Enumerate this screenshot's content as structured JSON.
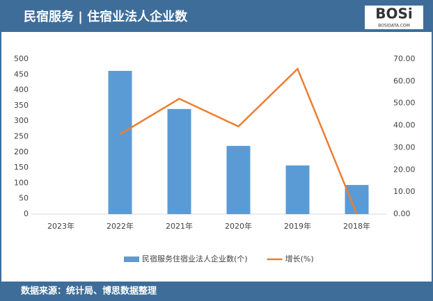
{
  "chart_data": {
    "type": "bar_line",
    "title": "民宿服务 | 住宿业法人企业数",
    "categories": [
      "2023年",
      "2022年",
      "2021年",
      "2020年",
      "2019年",
      "2018年"
    ],
    "series": [
      {
        "name": "民宿服务住宿业法人企业数(个)",
        "color": "#5b9bd5",
        "type": "bar",
        "values": [
          null,
          462,
          339,
          220,
          157,
          94
        ]
      },
      {
        "name": "增长(%)",
        "color": "#ed7d31",
        "type": "line",
        "axis": "y2",
        "values": [
          null,
          36.1,
          52.1,
          39.6,
          65.6,
          0
        ]
      }
    ],
    "ylim": [
      0,
      500
    ],
    "yticks": [
      0,
      50,
      100,
      150,
      200,
      250,
      300,
      350,
      400,
      450,
      500
    ],
    "y2lim": [
      0,
      70
    ],
    "y2ticks": [
      {
        "value": 0,
        "label": "0.00"
      },
      {
        "value": 10,
        "label": "10.00"
      },
      {
        "value": 20,
        "label": "20.00"
      },
      {
        "value": 30,
        "label": "30.00"
      },
      {
        "value": 40,
        "label": "40.00"
      },
      {
        "value": 50,
        "label": "50.00"
      },
      {
        "value": 60,
        "label": "60.00"
      },
      {
        "value": 70,
        "label": "70.00"
      }
    ],
    "legend": "bottom"
  },
  "header": {
    "logo": "BOSi",
    "logo_sub": "BOSIDATA.COM"
  },
  "footer": {
    "source": "数据来源：统计局、博思数据整理"
  }
}
